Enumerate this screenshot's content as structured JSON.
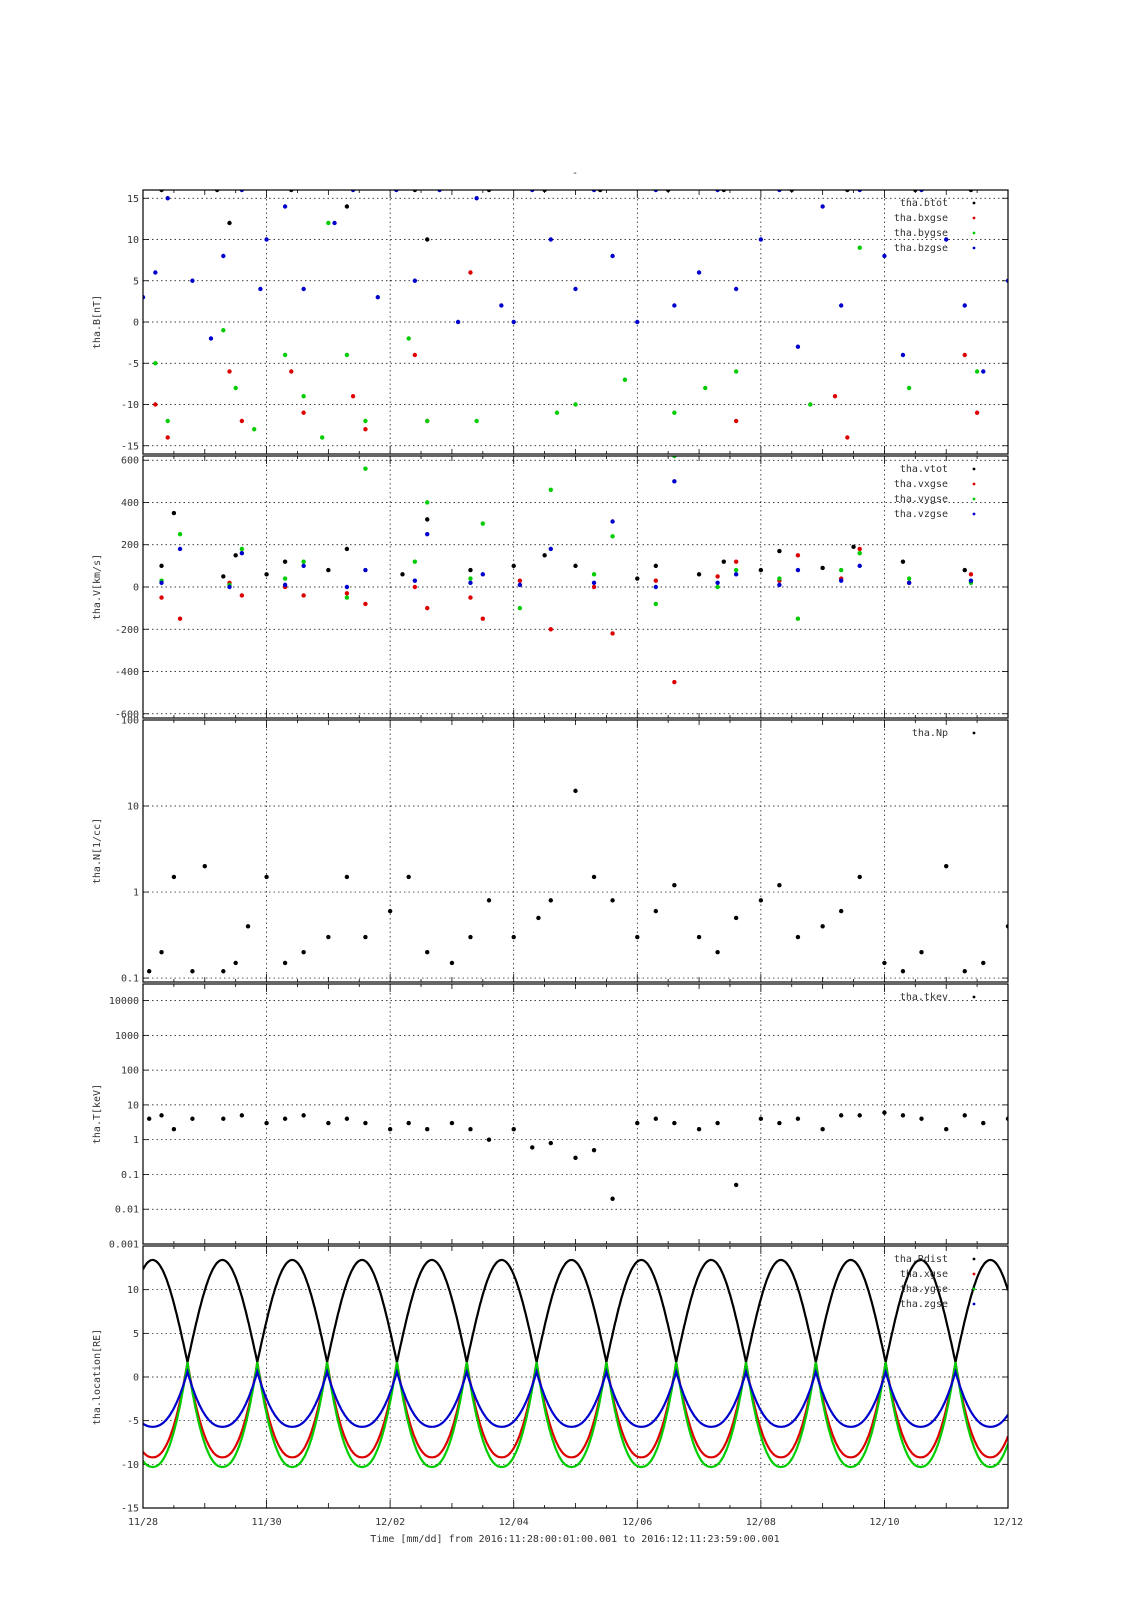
{
  "figure": {
    "title": "-",
    "footer": "Time [mm/dd]  from 2016:11:28:00:01:00.001  to  2016:12:11:23:59:00.001",
    "x_tick_labels": [
      "11/28",
      "11/30",
      "12/02",
      "12/04",
      "12/06",
      "12/08",
      "12/10",
      "12/12"
    ]
  },
  "chart_data": [
    {
      "type": "scatter",
      "ylabel": "tha.B[nT]",
      "xlabel": "Time [mm/dd]",
      "x_range_days": [
        0,
        14
      ],
      "ylim": [
        -16,
        16
      ],
      "y_scale": "linear",
      "y_ticks": [
        15,
        10,
        5,
        0,
        -5,
        -10,
        -15
      ],
      "y_tick_labels": [
        "15",
        "10",
        "5",
        "0",
        "-5",
        "-10",
        "-15"
      ],
      "grid": true,
      "legend_position": "top-right",
      "series": [
        {
          "name": "tha.btot",
          "color": "#000000",
          "x": [
            0.3,
            1.2,
            1.4,
            2.4,
            3.3,
            4.4,
            4.6,
            5.6,
            6.5,
            7.4,
            8.5,
            9.4,
            10.5,
            11.4,
            12.5,
            13.4
          ],
          "y": [
            16,
            16,
            12,
            16,
            14,
            16,
            10,
            16,
            16,
            16,
            16,
            16,
            16,
            16,
            16,
            16
          ]
        },
        {
          "name": "tha.bxgse",
          "color": "#dd0000",
          "x": [
            0.2,
            0.4,
            1.4,
            1.6,
            2.4,
            2.6,
            3.4,
            3.6,
            4.4,
            4.6,
            5.3,
            9.6,
            11.2,
            11.4,
            13.3,
            13.5
          ],
          "y": [
            -10,
            -14,
            -6,
            -12,
            -6,
            -11,
            -9,
            -13,
            -4,
            -12,
            6,
            -12,
            -9,
            -14,
            -4,
            -11
          ]
        },
        {
          "name": "tha.bygse",
          "color": "#00cc00",
          "x": [
            0.2,
            0.4,
            1.3,
            1.5,
            1.8,
            2.3,
            2.6,
            2.9,
            3.0,
            3.3,
            3.6,
            4.3,
            4.6,
            5.4,
            6.7,
            7.0,
            7.8,
            8.6,
            9.1,
            9.6,
            10.8,
            11.6,
            12.4,
            13.5
          ],
          "y": [
            -5,
            -12,
            -1,
            -8,
            -13,
            -4,
            -9,
            -14,
            12,
            -4,
            -12,
            -2,
            -12,
            -12,
            -11,
            -10,
            -7,
            -11,
            -8,
            -6,
            -10,
            9,
            -8,
            -6
          ]
        },
        {
          "name": "tha.bzgse",
          "color": "#0000cc",
          "x": [
            0.0,
            0.2,
            0.4,
            0.8,
            1.1,
            1.3,
            1.6,
            1.9,
            2.0,
            2.3,
            2.6,
            3.1,
            3.4,
            3.8,
            4.1,
            4.4,
            4.8,
            5.1,
            5.4,
            5.8,
            6.0,
            6.3,
            6.6,
            7.0,
            7.3,
            7.6,
            8.0,
            8.3,
            8.6,
            9.0,
            9.3,
            9.6,
            10.0,
            10.3,
            10.6,
            11.0,
            11.3,
            11.6,
            12.0,
            12.3,
            12.6,
            13.0,
            13.3,
            13.6,
            14.0
          ],
          "y": [
            3,
            6,
            15,
            5,
            -2,
            8,
            16,
            4,
            10,
            14,
            4,
            12,
            16,
            3,
            16,
            5,
            16,
            0,
            15,
            2,
            0,
            16,
            10,
            4,
            16,
            8,
            0,
            16,
            2,
            6,
            16,
            4,
            10,
            16,
            -3,
            14,
            2,
            16,
            8,
            -4,
            16,
            10,
            2,
            -6,
            5
          ]
        }
      ]
    },
    {
      "type": "scatter",
      "ylabel": "tha.V[km/s]",
      "xlabel": "Time [mm/dd]",
      "x_range_days": [
        0,
        14
      ],
      "ylim": [
        -620,
        620
      ],
      "y_scale": "linear",
      "y_ticks": [
        600,
        400,
        200,
        0,
        -200,
        -400,
        -600
      ],
      "y_tick_labels": [
        "600",
        "400",
        "200",
        "0",
        "-200",
        "-400",
        "-600"
      ],
      "grid": true,
      "legend_position": "top-right",
      "series": [
        {
          "name": "tha.vtot",
          "color": "#000000",
          "x": [
            0.3,
            0.5,
            1.3,
            1.5,
            2.0,
            2.3,
            3.0,
            3.3,
            4.2,
            4.6,
            5.3,
            6.0,
            6.5,
            7.0,
            8.0,
            8.3,
            9.0,
            9.4,
            10.0,
            10.3,
            11.0,
            11.5,
            12.3,
            13.3
          ],
          "y": [
            100,
            350,
            50,
            150,
            60,
            120,
            80,
            180,
            60,
            320,
            80,
            100,
            150,
            100,
            40,
            100,
            60,
            120,
            80,
            170,
            90,
            190,
            120,
            80
          ]
        },
        {
          "name": "tha.vxgse",
          "color": "#dd0000",
          "x": [
            0.3,
            0.6,
            1.4,
            1.6,
            2.3,
            2.6,
            3.3,
            3.6,
            4.4,
            4.6,
            5.3,
            5.5,
            6.1,
            6.6,
            7.3,
            7.6,
            8.3,
            8.6,
            9.3,
            9.6,
            10.3,
            10.6,
            11.3,
            11.6,
            12.4,
            13.4
          ],
          "y": [
            -50,
            -150,
            20,
            -40,
            0,
            -40,
            -30,
            -80,
            0,
            -100,
            -50,
            -150,
            30,
            -200,
            0,
            -220,
            30,
            -450,
            50,
            120,
            30,
            150,
            40,
            180,
            20,
            60
          ]
        },
        {
          "name": "tha.vygse",
          "color": "#00cc00",
          "x": [
            0.3,
            0.6,
            1.4,
            1.6,
            2.3,
            2.6,
            3.3,
            3.6,
            4.4,
            4.6,
            5.3,
            5.5,
            6.1,
            6.6,
            7.3,
            7.6,
            8.3,
            8.6,
            9.3,
            9.6,
            10.3,
            10.6,
            11.3,
            11.6,
            12.4,
            13.4
          ],
          "y": [
            30,
            250,
            10,
            180,
            40,
            120,
            -50,
            560,
            120,
            400,
            40,
            300,
            -100,
            460,
            60,
            240,
            -80,
            620,
            0,
            80,
            40,
            -150,
            80,
            160,
            40,
            20
          ]
        },
        {
          "name": "tha.vzgse",
          "color": "#0000cc",
          "x": [
            0.3,
            0.6,
            1.4,
            1.6,
            2.3,
            2.6,
            3.3,
            3.6,
            4.4,
            4.6,
            5.3,
            5.5,
            6.1,
            6.6,
            7.3,
            7.6,
            8.3,
            8.6,
            9.3,
            9.6,
            10.3,
            10.6,
            11.3,
            11.6,
            12.4,
            13.4
          ],
          "y": [
            20,
            180,
            0,
            160,
            10,
            100,
            0,
            80,
            30,
            250,
            20,
            60,
            10,
            180,
            20,
            310,
            0,
            500,
            20,
            60,
            10,
            80,
            30,
            100,
            20,
            30
          ]
        }
      ]
    },
    {
      "type": "scatter",
      "ylabel": "tha.N[1/cc]",
      "xlabel": "Time [mm/dd]",
      "x_range_days": [
        0,
        14
      ],
      "ylim": [
        0.09,
        100
      ],
      "y_scale": "log",
      "y_ticks": [
        100,
        10,
        1,
        0.1
      ],
      "y_tick_labels": [
        "100",
        "10",
        "1",
        "0.1"
      ],
      "grid": true,
      "legend_position": "top-right",
      "series": [
        {
          "name": "tha.Np",
          "color": "#000000",
          "x": [
            0.1,
            0.3,
            0.5,
            0.8,
            1.0,
            1.3,
            1.5,
            1.7,
            2.0,
            2.3,
            2.6,
            3.0,
            3.3,
            3.6,
            4.0,
            4.3,
            4.6,
            5.0,
            5.3,
            5.6,
            6.0,
            6.4,
            6.6,
            7.0,
            7.3,
            7.6,
            8.0,
            8.3,
            8.6,
            9.0,
            9.3,
            9.6,
            10.0,
            10.3,
            10.6,
            11.0,
            11.3,
            11.6,
            12.0,
            12.3,
            12.6,
            13.0,
            13.3,
            13.6,
            14.0
          ],
          "y": [
            0.12,
            0.2,
            1.5,
            0.12,
            2,
            0.12,
            0.15,
            0.4,
            1.5,
            0.15,
            0.2,
            0.3,
            1.5,
            0.3,
            0.6,
            1.5,
            0.2,
            0.15,
            0.3,
            0.8,
            0.3,
            0.5,
            0.8,
            15,
            1.5,
            0.8,
            0.3,
            0.6,
            1.2,
            0.3,
            0.2,
            0.5,
            0.8,
            1.2,
            0.3,
            0.4,
            0.6,
            1.5,
            0.15,
            0.12,
            0.2,
            2,
            0.12,
            0.15,
            0.4
          ]
        }
      ]
    },
    {
      "type": "scatter",
      "ylabel": "tha.T[keV]",
      "xlabel": "Time [mm/dd]",
      "x_range_days": [
        0,
        14
      ],
      "ylim": [
        0.001,
        30000
      ],
      "y_scale": "log",
      "y_ticks": [
        10000,
        1000,
        100,
        10,
        1,
        0.1,
        0.01,
        0.001
      ],
      "y_tick_labels": [
        "10000",
        "1000",
        "100",
        "10",
        "1",
        "0.1",
        "0.01",
        "0.001"
      ],
      "grid": true,
      "legend_position": "top-right",
      "series": [
        {
          "name": "tha.tkev",
          "color": "#000000",
          "x": [
            0.1,
            0.3,
            0.5,
            0.8,
            1.3,
            1.6,
            2.0,
            2.3,
            2.6,
            3.0,
            3.3,
            3.6,
            4.0,
            4.3,
            4.6,
            5.0,
            5.3,
            5.6,
            6.0,
            6.3,
            6.6,
            7.0,
            7.3,
            7.6,
            8.0,
            8.3,
            8.6,
            9.0,
            9.3,
            9.6,
            10.0,
            10.3,
            10.6,
            11.0,
            11.3,
            11.6,
            12.0,
            12.3,
            12.6,
            13.0,
            13.3,
            13.6,
            14.0
          ],
          "y": [
            4,
            5,
            2,
            4,
            4,
            5,
            3,
            4,
            5,
            3,
            4,
            3,
            2,
            3,
            2,
            3,
            2,
            1,
            2,
            0.6,
            0.8,
            0.3,
            0.5,
            0.02,
            3,
            4,
            3,
            2,
            3,
            0.05,
            4,
            3,
            4,
            2,
            5,
            5,
            6,
            5,
            4,
            2,
            5,
            3,
            4
          ]
        }
      ]
    },
    {
      "type": "line",
      "ylabel": "tha.location[RE]",
      "xlabel": "Time [mm/dd]",
      "x_range_days": [
        0,
        14
      ],
      "ylim": [
        -15,
        15
      ],
      "y_scale": "linear",
      "y_ticks": [
        10,
        5,
        0,
        -5,
        -10,
        -15
      ],
      "y_tick_labels": [
        "10",
        "5",
        "0",
        "-5",
        "-10",
        "-15"
      ],
      "grid": true,
      "legend_position": "top-right",
      "orbit_period_days": 1.13,
      "series": [
        {
          "name": "tha.Rdist",
          "color": "#000000",
          "min": 1.7,
          "max": 13.4,
          "phase": 0.72
        },
        {
          "name": "tha.xgse",
          "color": "#dd0000",
          "min": -9.2,
          "max": 1.7,
          "phase": 0.72
        },
        {
          "name": "tha.ygse",
          "color": "#00cc00",
          "min": -10.3,
          "max": 1.7,
          "phase": 0.72
        },
        {
          "name": "tha.zgse",
          "color": "#0000cc",
          "min": -5.7,
          "max": 0.6,
          "phase": 0.72
        }
      ]
    }
  ]
}
